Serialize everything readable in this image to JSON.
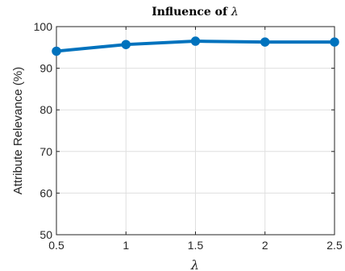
{
  "chart_data": {
    "type": "line",
    "title_prefix": "Influence of ",
    "title_symbol": "λ",
    "xlabel": "λ",
    "ylabel": "Attribute Relevance (%)",
    "xlim": [
      0.5,
      2.5
    ],
    "ylim": [
      50,
      100
    ],
    "xticks": [
      0.5,
      1,
      1.5,
      2,
      2.5
    ],
    "xtick_labels": [
      "0.5",
      "1",
      "1.5",
      "2",
      "2.5"
    ],
    "yticks": [
      50,
      60,
      70,
      80,
      90,
      100
    ],
    "ytick_labels": [
      "50",
      "60",
      "70",
      "80",
      "90",
      "100"
    ],
    "grid": true,
    "series": [
      {
        "x": [
          0.5,
          1,
          1.5,
          2,
          2.5
        ],
        "y": [
          94.1,
          95.7,
          96.5,
          96.3,
          96.3
        ],
        "color": "#0072BD",
        "marker": "circle"
      }
    ]
  }
}
